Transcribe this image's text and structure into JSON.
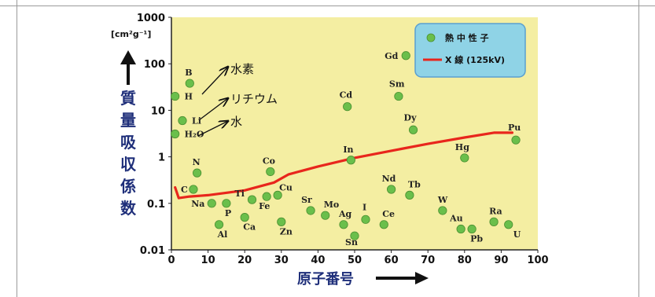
{
  "chart_data": {
    "type": "scatter",
    "x_axis": {
      "label": "原子番号",
      "ticks": [
        "0",
        "10",
        "20",
        "30",
        "40",
        "50",
        "60",
        "70",
        "80",
        "90",
        "100"
      ],
      "range": [
        0,
        100
      ]
    },
    "y_axis": {
      "label": "質量吸収係数",
      "unit": "[cm²g⁻¹]",
      "scale": "log",
      "ticks": [
        "0.01",
        "0.1",
        "1",
        "10",
        "100",
        "1000"
      ],
      "range": [
        0.01,
        1000
      ]
    },
    "legend": {
      "position": "top-right",
      "items": [
        {
          "label": "熱 中 性 子",
          "marker": "circle",
          "color": "#6abf4b"
        },
        {
          "label": "X 線 (125kV)",
          "marker": "line",
          "color": "#e8261c"
        }
      ]
    },
    "series": [
      {
        "name": "熱 中 性 子",
        "kind": "points",
        "color": "#6abf4b",
        "points": [
          {
            "label": "H",
            "x": 1,
            "y": 20
          },
          {
            "label": "H₂O",
            "x": 1,
            "y": 3.1
          },
          {
            "label": "Li",
            "x": 3,
            "y": 6
          },
          {
            "label": "B",
            "x": 5,
            "y": 38
          },
          {
            "label": "C",
            "x": 6,
            "y": 0.2
          },
          {
            "label": "N",
            "x": 7,
            "y": 0.45
          },
          {
            "label": "Na",
            "x": 11,
            "y": 0.1
          },
          {
            "label": "Al",
            "x": 13,
            "y": 0.035
          },
          {
            "label": "P",
            "x": 15,
            "y": 0.1
          },
          {
            "label": "Ti",
            "x": 22,
            "y": 0.12
          },
          {
            "label": "Ca",
            "x": 20,
            "y": 0.05
          },
          {
            "label": "Fe",
            "x": 26,
            "y": 0.14
          },
          {
            "label": "Co",
            "x": 27,
            "y": 0.48
          },
          {
            "label": "Cu",
            "x": 29,
            "y": 0.15
          },
          {
            "label": "Zn",
            "x": 30,
            "y": 0.04
          },
          {
            "label": "Sr",
            "x": 38,
            "y": 0.07
          },
          {
            "label": "Mo",
            "x": 42,
            "y": 0.055
          },
          {
            "label": "Ag",
            "x": 47,
            "y": 0.035
          },
          {
            "label": "Cd",
            "x": 48,
            "y": 12
          },
          {
            "label": "In",
            "x": 49,
            "y": 0.85
          },
          {
            "label": "Sn",
            "x": 50,
            "y": 0.02
          },
          {
            "label": "I",
            "x": 53,
            "y": 0.045
          },
          {
            "label": "Ce",
            "x": 58,
            "y": 0.035
          },
          {
            "label": "Nd",
            "x": 60,
            "y": 0.2
          },
          {
            "label": "Sm",
            "x": 62,
            "y": 20
          },
          {
            "label": "Gd",
            "x": 64,
            "y": 150
          },
          {
            "label": "Tb",
            "x": 65,
            "y": 0.15
          },
          {
            "label": "Dy",
            "x": 66,
            "y": 3.8
          },
          {
            "label": "W",
            "x": 74,
            "y": 0.07
          },
          {
            "label": "Hg",
            "x": 80,
            "y": 0.95
          },
          {
            "label": "Au",
            "x": 79,
            "y": 0.028
          },
          {
            "label": "Pb",
            "x": 82,
            "y": 0.028
          },
          {
            "label": "Ra",
            "x": 88,
            "y": 0.04
          },
          {
            "label": "U",
            "x": 92,
            "y": 0.035
          },
          {
            "label": "Pu",
            "x": 94,
            "y": 2.3
          }
        ]
      },
      {
        "name": "X 線 (125kV)",
        "kind": "line",
        "color": "#e8261c",
        "points": [
          {
            "x": 1,
            "y": 0.22
          },
          {
            "x": 2,
            "y": 0.13
          },
          {
            "x": 5,
            "y": 0.14
          },
          {
            "x": 10,
            "y": 0.15
          },
          {
            "x": 20,
            "y": 0.19
          },
          {
            "x": 28,
            "y": 0.28
          },
          {
            "x": 32,
            "y": 0.42
          },
          {
            "x": 40,
            "y": 0.62
          },
          {
            "x": 50,
            "y": 0.95
          },
          {
            "x": 60,
            "y": 1.35
          },
          {
            "x": 70,
            "y": 1.9
          },
          {
            "x": 80,
            "y": 2.6
          },
          {
            "x": 88,
            "y": 3.3
          },
          {
            "x": 93,
            "y": 3.3
          }
        ]
      }
    ],
    "annotations": [
      {
        "text": "水素",
        "target": "H"
      },
      {
        "text": "リチウム",
        "target": "Li"
      },
      {
        "text": "水",
        "target": "H₂O"
      }
    ]
  }
}
